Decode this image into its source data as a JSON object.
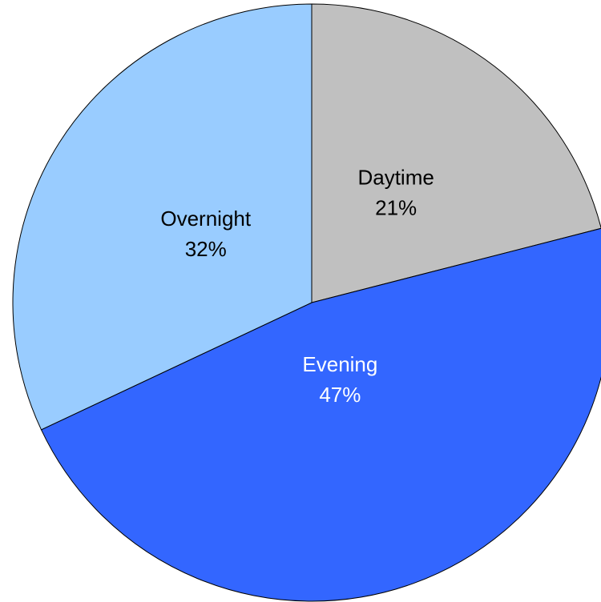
{
  "chart_data": {
    "type": "pie",
    "categories": [
      "Daytime",
      "Evening",
      "Overnight"
    ],
    "values": [
      21,
      47,
      32
    ],
    "value_labels": [
      "21%",
      "47%",
      "32%"
    ],
    "colors": [
      "#c0c0c0",
      "#3366ff",
      "#99ccff"
    ],
    "label_colors": [
      "#000000",
      "#ffffff",
      "#000000"
    ]
  }
}
